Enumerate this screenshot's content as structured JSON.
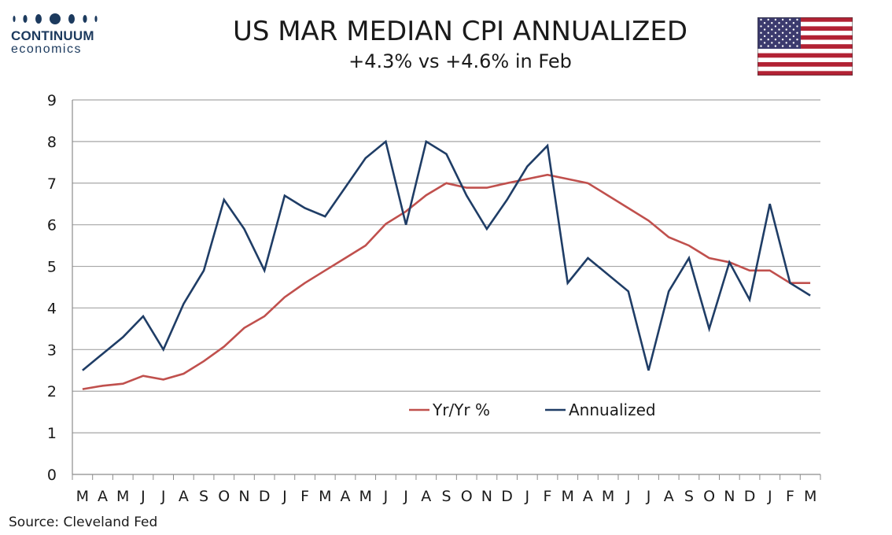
{
  "logo": {
    "name": "CONTINUUM",
    "sub": "economics"
  },
  "header": {
    "title": "US MAR MEDIAN CPI ANNUALIZED",
    "subtitle": "+4.3% vs +4.6% in Feb"
  },
  "source": "Source: Cleveland Fed",
  "colors": {
    "yoy": "#c0504d",
    "annualized": "#1f3d66",
    "grid": "#a6a6a6",
    "logo": "#1c3a5e"
  },
  "icons": {
    "flag": "us-flag-icon"
  },
  "chart_data": {
    "type": "line",
    "categories": [
      "M",
      "A",
      "M",
      "J",
      "J",
      "A",
      "S",
      "O",
      "N",
      "D",
      "J",
      "F",
      "M",
      "A",
      "M",
      "J",
      "J",
      "A",
      "S",
      "O",
      "N",
      "D",
      "J",
      "F",
      "M",
      "A",
      "M",
      "J",
      "J",
      "A",
      "S",
      "O",
      "N",
      "D",
      "J",
      "F",
      "M"
    ],
    "ylim": [
      0,
      9
    ],
    "yticks": [
      0,
      1,
      2,
      3,
      4,
      5,
      6,
      7,
      8,
      9
    ],
    "grid": true,
    "legend_position": "center-bottom",
    "series": [
      {
        "name": "Yr/Yr %",
        "color": "#c0504d",
        "values": [
          2.05,
          2.13,
          2.18,
          2.37,
          2.28,
          2.42,
          2.72,
          3.07,
          3.52,
          3.8,
          4.26,
          4.6,
          4.9,
          5.2,
          5.5,
          6.02,
          6.32,
          6.71,
          7.0,
          6.89,
          6.89,
          7.0,
          7.1,
          7.2,
          7.1,
          7.0,
          6.7,
          6.4,
          6.1,
          5.7,
          5.5,
          5.2,
          5.1,
          4.9,
          4.9,
          4.6,
          4.6
        ]
      },
      {
        "name": "Annualized",
        "color": "#1f3d66",
        "values": [
          2.5,
          2.9,
          3.3,
          3.8,
          3.0,
          4.1,
          4.9,
          6.6,
          5.9,
          4.9,
          6.7,
          6.4,
          6.2,
          6.9,
          7.6,
          8.0,
          6.0,
          8.0,
          7.7,
          6.7,
          5.9,
          6.6,
          7.4,
          7.9,
          4.6,
          5.2,
          4.8,
          4.4,
          2.5,
          4.4,
          5.2,
          3.5,
          5.1,
          4.2,
          6.5,
          4.6,
          4.3
        ]
      }
    ]
  }
}
